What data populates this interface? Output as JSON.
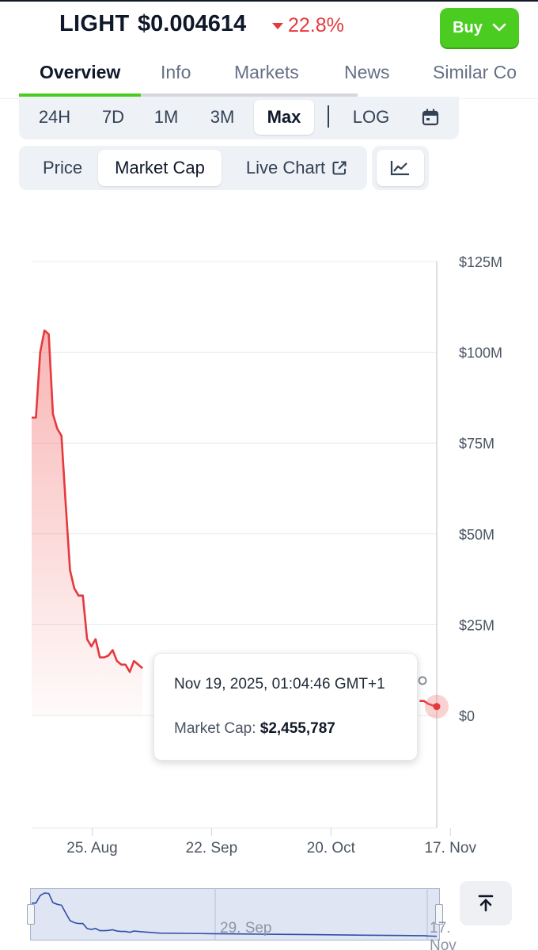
{
  "coin": {
    "symbol": "LIGHT",
    "price": "$0.004614",
    "change": "22.8%",
    "change_direction": "down",
    "change_color": "#e5393d"
  },
  "buy_button": {
    "label": "Buy",
    "color": "#4bcc21"
  },
  "tabs": [
    {
      "label": "Overview",
      "active": true
    },
    {
      "label": "Info",
      "active": false
    },
    {
      "label": "Markets",
      "active": false
    },
    {
      "label": "News",
      "active": false
    },
    {
      "label": "Similar Co",
      "active": false
    }
  ],
  "ranges": {
    "options": [
      "24H",
      "7D",
      "1M",
      "3M",
      "Max"
    ],
    "selected": "Max",
    "log_label": "LOG",
    "calendar_icon": "calendar-icon"
  },
  "modes": {
    "options": [
      "Price",
      "Market Cap",
      "Live Chart"
    ],
    "selected": "Market Cap",
    "live_chart_icon": "external-link-icon",
    "chart_type_icon": "line-chart-icon"
  },
  "chart_data": {
    "type": "area",
    "series": [
      {
        "name": "Market Cap",
        "color": "#e5393d",
        "points": [
          [
            "2025-08-16",
            82000000
          ],
          [
            "2025-08-17",
            82000000
          ],
          [
            "2025-08-18",
            100000000
          ],
          [
            "2025-08-19",
            106000000
          ],
          [
            "2025-08-20",
            105000000
          ],
          [
            "2025-08-21",
            83000000
          ],
          [
            "2025-08-22",
            79000000
          ],
          [
            "2025-08-23",
            77000000
          ],
          [
            "2025-08-24",
            58000000
          ],
          [
            "2025-08-25",
            40000000
          ],
          [
            "2025-08-26",
            35000000
          ],
          [
            "2025-08-27",
            33000000
          ],
          [
            "2025-08-28",
            33000000
          ],
          [
            "2025-08-29",
            21000000
          ],
          [
            "2025-08-30",
            19000000
          ],
          [
            "2025-08-31",
            21000000
          ],
          [
            "2025-09-01",
            16000000
          ],
          [
            "2025-09-02",
            16000000
          ],
          [
            "2025-09-03",
            16500000
          ],
          [
            "2025-09-04",
            18000000
          ],
          [
            "2025-09-05",
            15000000
          ],
          [
            "2025-09-06",
            14000000
          ],
          [
            "2025-09-07",
            14000000
          ],
          [
            "2025-09-08",
            12000000
          ],
          [
            "2025-09-09",
            15000000
          ],
          [
            "2025-09-10",
            14000000
          ],
          [
            "2025-09-11",
            13000000
          ],
          [
            "2025-11-15",
            4000000
          ],
          [
            "2025-11-16",
            4000000
          ],
          [
            "2025-11-17",
            3200000
          ],
          [
            "2025-11-18",
            2800000
          ],
          [
            "2025-11-19",
            2455787
          ]
        ]
      }
    ],
    "x_ticks": [
      "25. Aug",
      "22. Sep",
      "20. Oct",
      "17. Nov"
    ],
    "y_ticks": [
      "$0",
      "$25M",
      "$50M",
      "$75M",
      "$100M",
      "$125M"
    ],
    "ylim": [
      0,
      125000000
    ],
    "grid": true,
    "navigator": {
      "labels": [
        "29. Sep",
        "17. Nov"
      ],
      "color": "#2f4fa6"
    }
  },
  "tooltip": {
    "date": "Nov 19, 2025, 01:04:46 GMT+1",
    "label": "Market Cap:",
    "value": "$2,455,787"
  },
  "scroll_top_icon": "arrow-up-to-top-icon"
}
